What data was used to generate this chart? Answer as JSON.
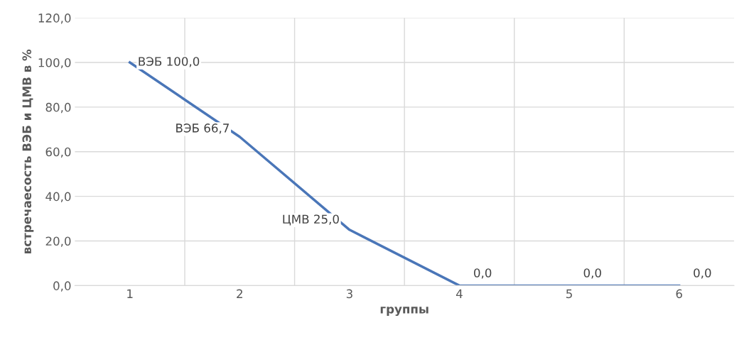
{
  "chart_data": {
    "type": "line",
    "xlabel": "группы",
    "ylabel": "встречаесость ВЭБ и ЦМВ в %",
    "categories": [
      "1",
      "2",
      "3",
      "4",
      "5",
      "6"
    ],
    "series": [
      {
        "color": "#4a76b8",
        "values": [
          100.0,
          66.7,
          25.0,
          0.0,
          0.0,
          0.0
        ],
        "value_labels": [
          "ВЭБ 100,0",
          "ВЭБ 66,7",
          "ЦМВ 25,0",
          "0,0",
          "0,0",
          "0,0"
        ]
      }
    ],
    "ylim": [
      0,
      120
    ],
    "yticks": [
      {
        "value": 0,
        "label": "0,0"
      },
      {
        "value": 20,
        "label": "20,0"
      },
      {
        "value": 40,
        "label": "40,0"
      },
      {
        "value": 60,
        "label": "60,0"
      },
      {
        "value": 80,
        "label": "80,0"
      },
      {
        "value": 100,
        "label": "100,0"
      },
      {
        "value": 120,
        "label": "120,0"
      }
    ],
    "grid": true,
    "marker": "none",
    "line_style": "solid"
  }
}
